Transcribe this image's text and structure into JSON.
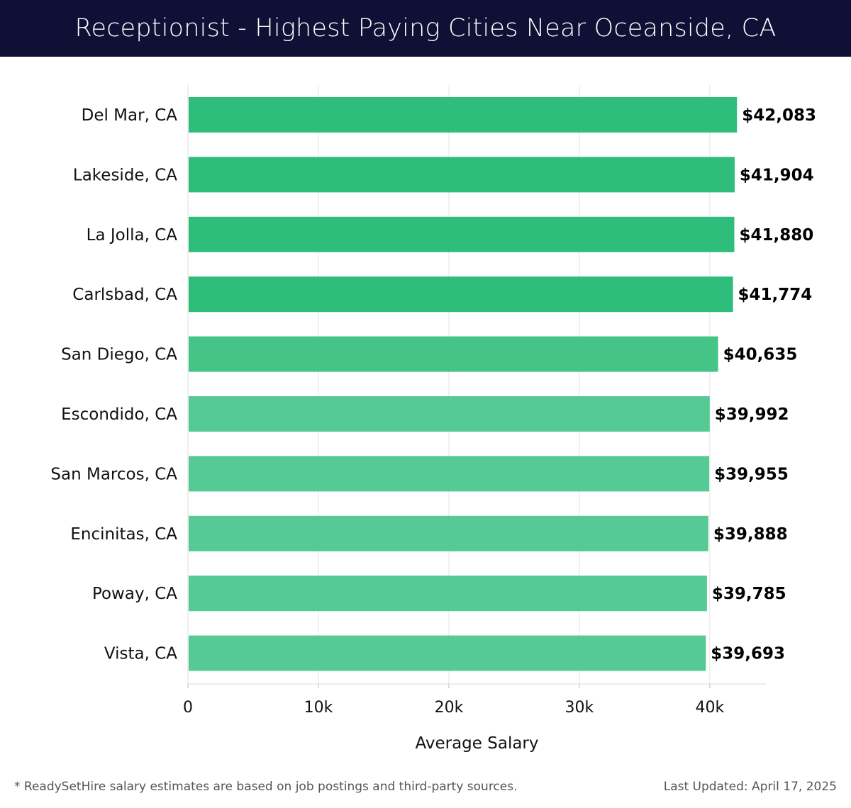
{
  "header": {
    "title": "Receptionist - Highest Paying Cities Near Oceanside, CA"
  },
  "footer": {
    "note": "* ReadySetHire salary estimates are based on job postings and third-party sources.",
    "updated": "Last Updated: April 17, 2025"
  },
  "colors": {
    "title_bg": "#0f1035",
    "bar_dark": "#2ebd7a",
    "bar_mid": "#45c487",
    "bar_light": "#55ca94"
  },
  "chart_data": {
    "type": "bar",
    "orientation": "horizontal",
    "categories": [
      "Del Mar, CA",
      "Lakeside, CA",
      "La Jolla, CA",
      "Carlsbad, CA",
      "San Diego, CA",
      "Escondido, CA",
      "San Marcos, CA",
      "Encinitas, CA",
      "Poway, CA",
      "Vista, CA"
    ],
    "values": [
      42083,
      41904,
      41880,
      41774,
      40635,
      39992,
      39955,
      39888,
      39785,
      39693
    ],
    "value_labels": [
      "$42,083",
      "$41,904",
      "$41,880",
      "$41,774",
      "$40,635",
      "$39,992",
      "$39,955",
      "$39,888",
      "$39,785",
      "$39,693"
    ],
    "xlabel": "Average Salary",
    "ylabel": "",
    "xlim": [
      0,
      44300
    ],
    "xticks": [
      0,
      10000,
      20000,
      30000,
      40000
    ],
    "xtick_labels": [
      "0",
      "10k",
      "20k",
      "30k",
      "40k"
    ],
    "grid": true
  }
}
